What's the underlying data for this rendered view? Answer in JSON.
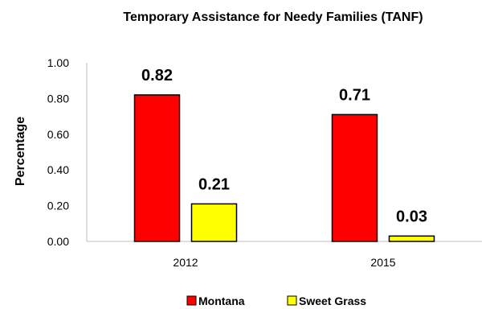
{
  "chart_data": {
    "type": "bar",
    "title": "Temporary Assistance for Needy Families (TANF)",
    "ylabel": "Percentage",
    "xlabel": "",
    "categories": [
      "2012",
      "2015"
    ],
    "series": [
      {
        "name": "Montana",
        "values": [
          0.82,
          0.71
        ],
        "labels": [
          "0.82",
          "0.71"
        ],
        "color": "#ff0000"
      },
      {
        "name": "Sweet Grass",
        "values": [
          0.21,
          0.03
        ],
        "labels": [
          "0.21",
          "0.03"
        ],
        "color": "#ffff00"
      }
    ],
    "ylim": [
      0,
      1.0
    ],
    "yticks": [
      "0.00",
      "0.20",
      "0.40",
      "0.60",
      "0.80",
      "1.00"
    ],
    "ytick_values": [
      0,
      0.2,
      0.4,
      0.6,
      0.8,
      1.0
    ],
    "grid": false,
    "legend_position": "bottom"
  }
}
